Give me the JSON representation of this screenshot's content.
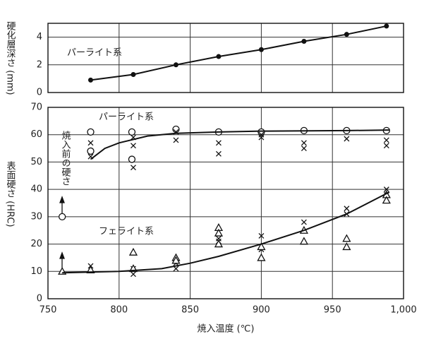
{
  "chart_data": [
    {
      "type": "line",
      "ylabel": "硬化層深さ (mm)",
      "annotations": [
        "パーライト系"
      ],
      "ylim": [
        0,
        5
      ],
      "yticks": [
        0,
        2,
        4
      ],
      "grid": true,
      "series": [
        {
          "color": "#111",
          "marker": "dot",
          "x": [
            780,
            810,
            840,
            870,
            900,
            930,
            960,
            988
          ],
          "values": [
            0.9,
            1.3,
            2.0,
            2.6,
            3.1,
            3.7,
            4.2,
            4.8
          ]
        }
      ]
    },
    {
      "type": "scatter",
      "xlabel": "焼入温度 (℃)",
      "ylabel": "表面硬さ (HRC)",
      "annotations": [
        "パーライト系",
        "フェライト系",
        "焼入前の硬さ"
      ],
      "xlim": [
        750,
        1000
      ],
      "xticks": [
        750,
        800,
        850,
        900,
        950,
        {
          "value": 1000,
          "label": "1,000"
        }
      ],
      "ylim": [
        0,
        70
      ],
      "yticks": [
        0,
        10,
        20,
        30,
        40,
        50,
        60,
        70
      ],
      "grid": true,
      "series": [
        {
          "color": "#111",
          "marker": "circle",
          "x": [
            760,
            780,
            780,
            809,
            809,
            840,
            870,
            900,
            930,
            960,
            988
          ],
          "values": [
            30,
            61,
            54,
            61,
            51,
            62,
            61,
            61,
            61.5,
            61.5,
            61.5
          ]
        },
        {
          "color": "#111",
          "marker": "cross",
          "x": [
            780,
            780,
            810,
            810,
            810,
            840,
            840,
            870,
            870,
            900,
            900,
            930,
            930,
            960,
            988,
            988
          ],
          "values": [
            57,
            52,
            59,
            56,
            48,
            61,
            58,
            57,
            53,
            60,
            59,
            57,
            55,
            58.5,
            58,
            56
          ]
        },
        {
          "color": "#111",
          "marker": "cross",
          "x": [
            780,
            810,
            810,
            840,
            840,
            870,
            870,
            900,
            900,
            930,
            960,
            960,
            988,
            988
          ],
          "values": [
            12,
            11,
            9,
            13,
            11,
            22,
            21,
            23,
            18,
            28,
            33,
            31,
            40,
            38
          ]
        },
        {
          "color": "#111",
          "marker": "triangle",
          "x": [
            760,
            780,
            810,
            810,
            840,
            840,
            870,
            870,
            870,
            900,
            900,
            930,
            930,
            960,
            960,
            988,
            988
          ],
          "values": [
            10,
            10.5,
            17,
            11,
            15,
            14,
            26,
            24,
            20,
            19,
            15,
            25,
            21,
            22,
            19,
            38,
            36
          ]
        },
        {
          "color": "#111",
          "marker": "line",
          "x": [
            780,
            790,
            800,
            820,
            840,
            870,
            900,
            960,
            990
          ],
          "values": [
            51,
            55,
            57,
            59.5,
            60.5,
            61,
            61.3,
            61.5,
            61.7
          ]
        },
        {
          "color": "#111",
          "marker": "line",
          "x": [
            760,
            800,
            830,
            850,
            870,
            900,
            930,
            960,
            990
          ],
          "values": [
            9.5,
            10,
            11,
            13,
            15.5,
            20,
            25,
            31,
            39
          ]
        }
      ]
    }
  ]
}
